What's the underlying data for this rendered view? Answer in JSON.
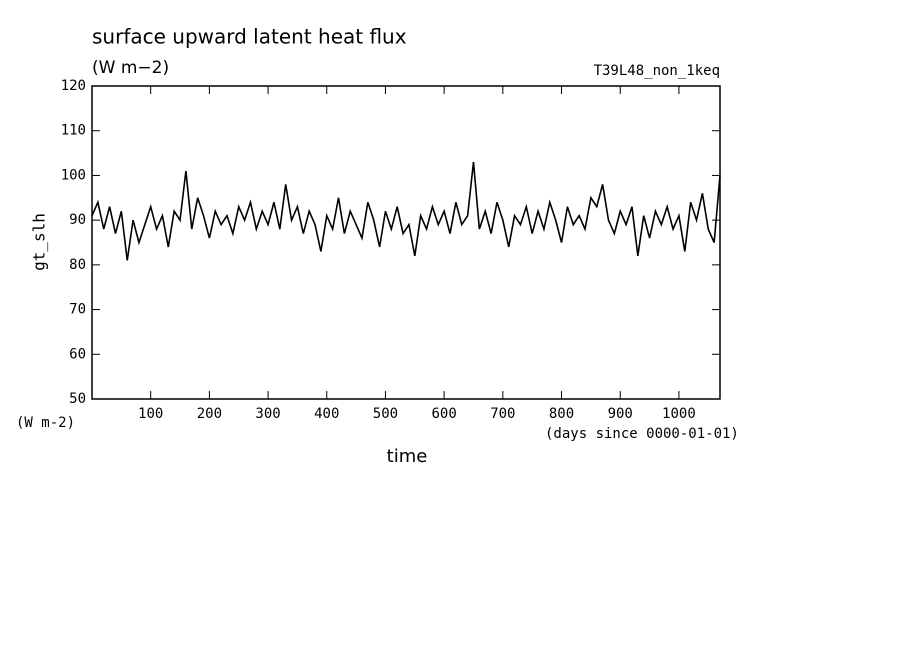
{
  "chart_data": {
    "type": "line",
    "title": "surface upward latent heat flux",
    "subtitle": "(W m−2)",
    "annotation": "T39L48_non_1keq",
    "y_label": "gt_slh",
    "y_unit": "(W m-2)",
    "x_label": "time",
    "x_unit": "(days since 0000-01-01)",
    "x": [
      0,
      10,
      20,
      30,
      40,
      50,
      60,
      70,
      80,
      90,
      100,
      110,
      120,
      130,
      140,
      150,
      160,
      170,
      180,
      190,
      200,
      210,
      220,
      230,
      240,
      250,
      260,
      270,
      280,
      290,
      300,
      310,
      320,
      330,
      340,
      350,
      360,
      370,
      380,
      390,
      400,
      410,
      420,
      430,
      440,
      450,
      460,
      470,
      480,
      490,
      500,
      510,
      520,
      530,
      540,
      550,
      560,
      570,
      580,
      590,
      600,
      610,
      620,
      630,
      640,
      650,
      660,
      670,
      680,
      690,
      700,
      710,
      720,
      730,
      740,
      750,
      760,
      770,
      780,
      790,
      800,
      810,
      820,
      830,
      840,
      850,
      860,
      870,
      880,
      890,
      900,
      910,
      920,
      930,
      940,
      950,
      960,
      970,
      980,
      990,
      1000,
      1010,
      1020,
      1030,
      1040,
      1050,
      1060,
      1070
    ],
    "series": [
      {
        "color": "#000000",
        "values": [
          91,
          94,
          88,
          93,
          87,
          92,
          81,
          90,
          85,
          89,
          93,
          88,
          91,
          84,
          92,
          90,
          101,
          88,
          95,
          91,
          86,
          92,
          89,
          91,
          87,
          93,
          90,
          94,
          88,
          92,
          89,
          94,
          88,
          98,
          90,
          93,
          87,
          92,
          89,
          83,
          91,
          88,
          95,
          87,
          92,
          89,
          86,
          94,
          90,
          84,
          92,
          88,
          93,
          87,
          89,
          82,
          91,
          88,
          93,
          89,
          92,
          87,
          94,
          89,
          91,
          103,
          88,
          92,
          87,
          94,
          90,
          84,
          91,
          89,
          93,
          87,
          92,
          88,
          94,
          90,
          85,
          93,
          89,
          91,
          88,
          95,
          93,
          98,
          90,
          87,
          92,
          89,
          93,
          82,
          91,
          86,
          92,
          89,
          93,
          88,
          91,
          83,
          94,
          90,
          96,
          88,
          85,
          100
        ]
      }
    ],
    "xlim": [
      0,
      1070
    ],
    "xticks": [
      100,
      200,
      300,
      400,
      500,
      600,
      700,
      800,
      900,
      1000
    ],
    "ylim": [
      50,
      120
    ],
    "yticks": [
      50,
      60,
      70,
      80,
      90,
      100,
      110,
      120
    ]
  }
}
